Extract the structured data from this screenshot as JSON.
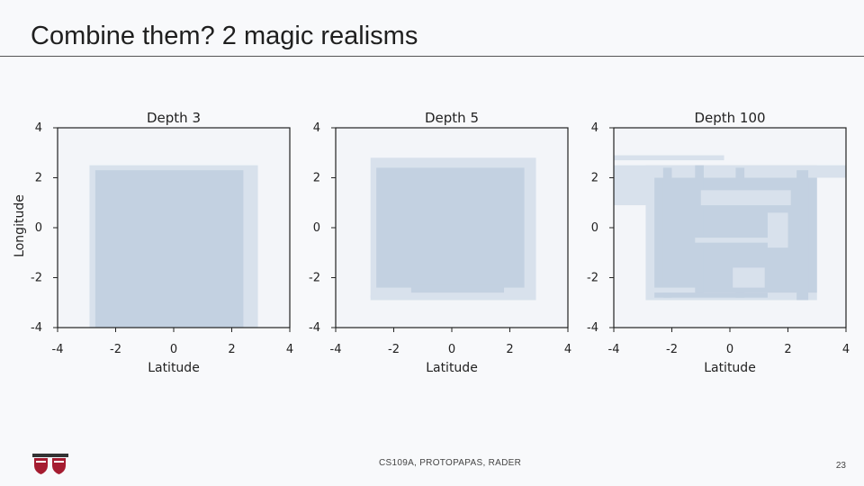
{
  "slide": {
    "title": "Combine them? 2 magic realisms",
    "footer": "CS109A, PROTOPAPAS, RADER",
    "page_number": "23"
  },
  "colors": {
    "plot_bg": "#f3f5f9",
    "region": "#c3d1e1",
    "region_light": "#d8e1ec",
    "axis": "#222222"
  },
  "chart_data": [
    {
      "type": "heatmap",
      "title": "Depth 3",
      "xlabel": "Latitude",
      "ylabel": "Longitude",
      "xlim": [
        -4,
        4
      ],
      "ylim": [
        -4,
        4
      ],
      "xticks": [
        "-4",
        "-2",
        "0",
        "2",
        "4"
      ],
      "yticks": [
        "4",
        "2",
        "0",
        "-2",
        "-4"
      ],
      "regions": [
        {
          "x0": -2.9,
          "x1": 2.9,
          "y0": -4.0,
          "y1": 2.5,
          "shade": "light"
        },
        {
          "x0": -2.7,
          "x1": 2.4,
          "y0": -4.0,
          "y1": 2.3,
          "shade": "dark"
        }
      ]
    },
    {
      "type": "heatmap",
      "title": "Depth 5",
      "xlabel": "Latitude",
      "ylabel": "",
      "xlim": [
        -4,
        4
      ],
      "ylim": [
        -4,
        4
      ],
      "xticks": [
        "-4",
        "-2",
        "0",
        "2",
        "4"
      ],
      "yticks": [
        "4",
        "2",
        "0",
        "-2",
        "-4"
      ],
      "regions": [
        {
          "x0": -2.8,
          "x1": 2.9,
          "y0": -2.9,
          "y1": 2.8,
          "shade": "light"
        },
        {
          "x0": -2.6,
          "x1": 2.5,
          "y0": -2.4,
          "y1": 2.4,
          "shade": "dark"
        },
        {
          "x0": -1.4,
          "x1": 1.8,
          "y0": -2.6,
          "y1": -2.3,
          "shade": "dark"
        },
        {
          "x0": -2.8,
          "x1": 2.5,
          "y0": -2.8,
          "y1": -2.7,
          "shade": "light"
        }
      ]
    },
    {
      "type": "heatmap",
      "title": "Depth 100",
      "xlabel": "Latitude",
      "ylabel": "",
      "xlim": [
        -4,
        4
      ],
      "ylim": [
        -4,
        4
      ],
      "xticks": [
        "-4",
        "-2",
        "0",
        "2",
        "4"
      ],
      "yticks": [
        "4",
        "2",
        "0",
        "-2",
        "-4"
      ],
      "regions": [
        {
          "x0": -4.0,
          "x1": -0.2,
          "y0": 2.7,
          "y1": 2.9,
          "shade": "light"
        },
        {
          "x0": -4.0,
          "x1": 4.0,
          "y0": 2.0,
          "y1": 2.5,
          "shade": "light"
        },
        {
          "x0": -4.0,
          "x1": -1.3,
          "y0": 0.9,
          "y1": 2.0,
          "shade": "light"
        },
        {
          "x0": -2.9,
          "x1": 3.0,
          "y0": -2.9,
          "y1": 2.5,
          "shade": "light"
        },
        {
          "x0": -2.6,
          "x1": 3.0,
          "y0": -2.6,
          "y1": 2.0,
          "shade": "dark"
        },
        {
          "x0": -2.3,
          "x1": -2.0,
          "y0": -2.8,
          "y1": 2.4,
          "shade": "dark"
        },
        {
          "x0": -1.2,
          "x1": -0.9,
          "y0": -2.7,
          "y1": 2.5,
          "shade": "dark"
        },
        {
          "x0": 0.2,
          "x1": 0.5,
          "y0": -2.8,
          "y1": 2.4,
          "shade": "dark"
        },
        {
          "x0": 2.3,
          "x1": 2.7,
          "y0": -2.9,
          "y1": 2.3,
          "shade": "dark"
        },
        {
          "x0": -1.0,
          "x1": 2.1,
          "y0": 0.9,
          "y1": 1.5,
          "shade": "light"
        },
        {
          "x0": -1.2,
          "x1": 2.0,
          "y0": -0.6,
          "y1": -0.4,
          "shade": "light"
        },
        {
          "x0": 0.1,
          "x1": 1.2,
          "y0": -2.4,
          "y1": -1.6,
          "shade": "light"
        },
        {
          "x0": 1.3,
          "x1": 2.0,
          "y0": -0.8,
          "y1": 0.6,
          "shade": "light"
        },
        {
          "x0": -2.9,
          "x1": -1.2,
          "y0": -2.6,
          "y1": -2.4,
          "shade": "light"
        },
        {
          "x0": -2.6,
          "x1": 1.3,
          "y0": -2.8,
          "y1": -2.6,
          "shade": "dark"
        }
      ]
    }
  ]
}
